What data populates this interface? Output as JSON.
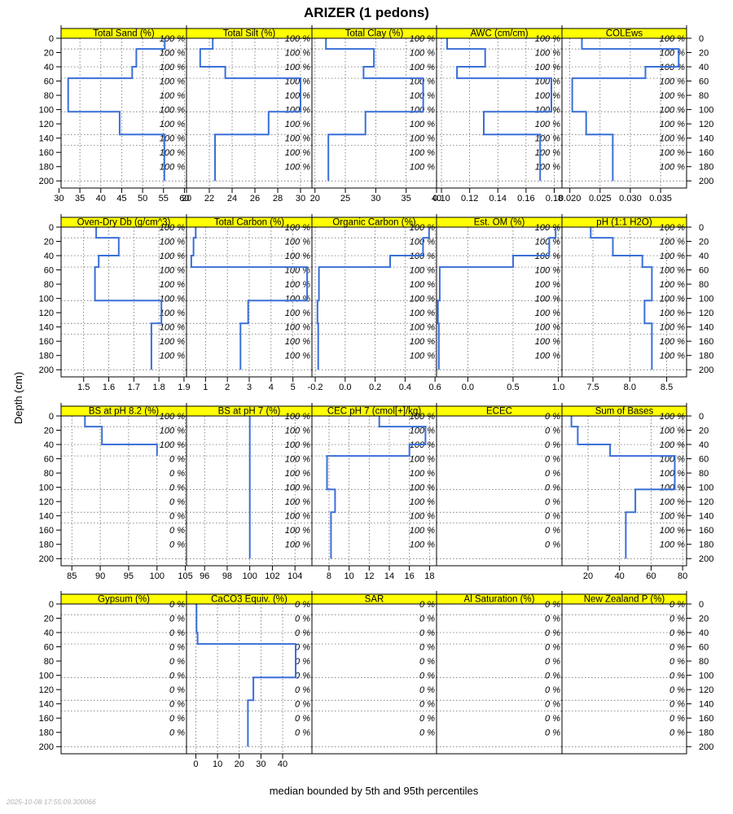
{
  "chart_data": {
    "type": "line",
    "title": "ARIZER (1 pedons)",
    "ylabel": "Depth (cm)",
    "xlabel": "median bounded by 5th and 95th percentiles",
    "timestamp": "2025-10-08 17:55:09.300066",
    "line_color": "#3a6fd8",
    "strip_color": "#ffff00",
    "depth_range": [
      0,
      210
    ],
    "depth_ticks": [
      0,
      20,
      40,
      60,
      80,
      100,
      120,
      140,
      160,
      180,
      200
    ],
    "horizon_breaks": [
      0,
      15,
      40,
      56,
      103,
      135,
      150,
      200
    ],
    "percent_depths": [
      0,
      20,
      40,
      60,
      80,
      100,
      120,
      140,
      160,
      180
    ],
    "panels": [
      {
        "name": "Total Sand (%)",
        "xlim": [
          30.5,
          60.5
        ],
        "ticks": [
          30,
          35,
          40,
          45,
          50,
          55,
          60
        ],
        "tick_labels": [
          "30",
          "35",
          "40",
          "45",
          "50",
          "55",
          "60"
        ],
        "values": [
          55.3,
          48.5,
          47.5,
          32.2,
          44.5,
          55.2,
          55.2
        ],
        "percent_labels": [
          "100 %",
          "100 %",
          "100 %",
          "100 %",
          "100 %",
          "100 %",
          "100 %",
          "100 %",
          "100 %",
          "100 %"
        ]
      },
      {
        "name": "Total Silt (%)",
        "xlim": [
          20,
          31
        ],
        "ticks": [
          20,
          22,
          24,
          26,
          28,
          30
        ],
        "tick_labels": [
          "20",
          "22",
          "24",
          "26",
          "28",
          "30"
        ],
        "values": [
          22.3,
          21.2,
          23.4,
          30.0,
          27.2,
          22.5,
          22.5
        ],
        "percent_labels": [
          "100 %",
          "100 %",
          "100 %",
          "100 %",
          "100 %",
          "100 %",
          "100 %",
          "100 %",
          "100 %",
          "100 %"
        ]
      },
      {
        "name": "Total Clay (%)",
        "xlim": [
          19.5,
          40
        ],
        "ticks": [
          20,
          25,
          30,
          35,
          40
        ],
        "tick_labels": [
          "20",
          "25",
          "30",
          "35",
          "40"
        ],
        "values": [
          21.8,
          29.7,
          28.0,
          37.8,
          28.3,
          22.2,
          22.2
        ],
        "percent_labels": [
          "100 %",
          "100 %",
          "100 %",
          "100 %",
          "100 %",
          "100 %",
          "100 %",
          "100 %",
          "100 %",
          "100 %"
        ]
      },
      {
        "name": "AWC (cm/cm)",
        "xlim": [
          0.0965,
          0.1855
        ],
        "ticks": [
          0.1,
          0.12,
          0.14,
          0.16,
          0.18
        ],
        "tick_labels": [
          "0.10",
          "0.12",
          "0.14",
          "0.16",
          "0.18"
        ],
        "values": [
          0.104,
          0.131,
          0.111,
          0.178,
          0.13,
          0.17,
          0.17
        ],
        "percent_labels": [
          "100 %",
          "100 %",
          "100 %",
          "100 %",
          "100 %",
          "100 %",
          "100 %",
          "100 %",
          "100 %",
          "100 %"
        ]
      },
      {
        "name": "COLEws",
        "xlim": [
          0.0187,
          0.0393
        ],
        "ticks": [
          0.02,
          0.025,
          0.03,
          0.035
        ],
        "tick_labels": [
          "0.020",
          "0.025",
          "0.030",
          "0.035"
        ],
        "values": [
          0.022,
          0.038,
          0.0325,
          0.0204,
          0.0227,
          0.0271,
          0.0271
        ],
        "percent_labels": [
          "100 %",
          "100 %",
          "100 %",
          "100 %",
          "100 %",
          "100 %",
          "100 %",
          "100 %",
          "100 %",
          "100 %"
        ]
      },
      {
        "name": "Oven-Dry Db (g/cm^3)",
        "xlim": [
          1.41,
          1.91
        ],
        "ticks": [
          1.5,
          1.6,
          1.7,
          1.8,
          1.9
        ],
        "tick_labels": [
          "1.5",
          "1.6",
          "1.7",
          "1.8",
          "1.9"
        ],
        "values": [
          1.55,
          1.64,
          1.56,
          1.545,
          1.81,
          1.77,
          1.77
        ],
        "percent_labels": [
          "100 %",
          "100 %",
          "100 %",
          "100 %",
          "100 %",
          "100 %",
          "100 %",
          "100 %",
          "100 %",
          "100 %"
        ]
      },
      {
        "name": "Total Carbon (%)",
        "xlim": [
          0.13,
          5.87
        ],
        "ticks": [
          1,
          2,
          3,
          4,
          5
        ],
        "tick_labels": [
          "1",
          "2",
          "3",
          "4",
          "5"
        ],
        "values": [
          0.55,
          0.45,
          0.35,
          5.65,
          2.95,
          2.6,
          2.6
        ],
        "percent_labels": [
          "100 %",
          "100 %",
          "100 %",
          "100 %",
          "100 %",
          "100 %",
          "100 %",
          "100 %",
          "100 %",
          "100 %"
        ]
      },
      {
        "name": "Organic Carbon (%)",
        "xlim": [
          -0.222,
          0.61
        ],
        "ticks": [
          -0.2,
          0.0,
          0.2,
          0.4,
          0.6
        ],
        "tick_labels": [
          "-0.2",
          "0.0",
          "0.2",
          "0.4",
          "0.6"
        ],
        "values": [
          0.56,
          0.52,
          0.3,
          -0.175,
          -0.185,
          -0.18,
          -0.18
        ],
        "percent_labels": [
          "100 %",
          "100 %",
          "100 %",
          "100 %",
          "100 %",
          "100 %",
          "100 %",
          "100 %",
          "100 %",
          "100 %"
        ]
      },
      {
        "name": "Est. OM (%)",
        "xlim": [
          -0.345,
          1.04
        ],
        "ticks": [
          0.0,
          0.5,
          1.0
        ],
        "tick_labels": [
          "0.0",
          "0.5",
          "1.0"
        ],
        "values": [
          0.97,
          0.9,
          0.5,
          -0.31,
          -0.33,
          -0.32,
          -0.32
        ],
        "percent_labels": [
          "100 %",
          "100 %",
          "100 %",
          "100 %",
          "100 %",
          "100 %",
          "100 %",
          "100 %",
          "100 %",
          "100 %"
        ]
      },
      {
        "name": "pH (1:1 H2O)",
        "xlim": [
          7.08,
          8.77
        ],
        "ticks": [
          7.5,
          8.0,
          8.5
        ],
        "tick_labels": [
          "7.5",
          "8.0",
          "8.5"
        ],
        "values": [
          7.47,
          7.77,
          8.17,
          8.3,
          8.2,
          8.3,
          8.3
        ],
        "percent_labels": [
          "100 %",
          "100 %",
          "100 %",
          "100 %",
          "100 %",
          "100 %",
          "100 %",
          "100 %",
          "100 %",
          "100 %"
        ]
      },
      {
        "name": "BS at pH 8.2 (%)",
        "xlim": [
          83.1,
          105.2
        ],
        "ticks": [
          85,
          90,
          95,
          100,
          105
        ],
        "tick_labels": [
          "85",
          "90",
          "95",
          "100",
          "105"
        ],
        "values": [
          87.3,
          90.3,
          100.0
        ],
        "depths": [
          0,
          15,
          40,
          56
        ],
        "percent_labels": [
          "100 %",
          "100 %",
          "100 %",
          "0 %",
          "0 %",
          "0 %",
          "0 %",
          "0 %",
          "0 %",
          "0 %"
        ]
      },
      {
        "name": "BS at pH 7 (%)",
        "xlim": [
          94.4,
          105.5
        ],
        "ticks": [
          96,
          98,
          100,
          102,
          104
        ],
        "tick_labels": [
          "96",
          "98",
          "100",
          "102",
          "104"
        ],
        "values": [
          100,
          100,
          100,
          100,
          100,
          100,
          100
        ],
        "percent_labels": [
          "100 %",
          "100 %",
          "100 %",
          "100 %",
          "100 %",
          "100 %",
          "100 %",
          "100 %",
          "100 %",
          "100 %"
        ]
      },
      {
        "name": "CEC pH 7 (cmol[+]/kg)",
        "xlim": [
          6.3,
          18.7
        ],
        "ticks": [
          8,
          10,
          12,
          14,
          16,
          18
        ],
        "tick_labels": [
          "8",
          "10",
          "12",
          "14",
          "16",
          "18"
        ],
        "values": [
          13.0,
          17.6,
          16.0,
          7.8,
          8.6,
          8.2,
          8.2
        ],
        "percent_labels": [
          "100 %",
          "100 %",
          "100 %",
          "100 %",
          "100 %",
          "100 %",
          "100 %",
          "100 %",
          "100 %",
          "100 %"
        ]
      },
      {
        "name": "ECEC",
        "xlim": [
          0,
          1
        ],
        "ticks": [],
        "tick_labels": [],
        "values": [],
        "percent_labels": [
          "0 %",
          "0 %",
          "0 %",
          "0 %",
          "0 %",
          "0 %",
          "0 %",
          "0 %",
          "0 %",
          "0 %"
        ]
      },
      {
        "name": "Sum of Bases",
        "xlim": [
          3.5,
          82.5
        ],
        "ticks": [
          20,
          40,
          60,
          80
        ],
        "tick_labels": [
          "20",
          "40",
          "60",
          "80"
        ],
        "values": [
          9.5,
          13.5,
          34.0,
          75.0,
          50.0,
          44.0,
          44.0
        ],
        "percent_labels": [
          "100 %",
          "100 %",
          "100 %",
          "100 %",
          "100 %",
          "100 %",
          "100 %",
          "100 %",
          "100 %",
          "100 %"
        ]
      },
      {
        "name": "Gypsum (%)",
        "xlim": [
          0,
          1
        ],
        "ticks": [],
        "tick_labels": [],
        "values": [],
        "percent_labels": [
          "0 %",
          "0 %",
          "0 %",
          "0 %",
          "0 %",
          "0 %",
          "0 %",
          "0 %",
          "0 %",
          "0 %"
        ]
      },
      {
        "name": "CaCO3 Equiv. (%)",
        "xlim": [
          -4.3,
          53.5
        ],
        "ticks": [
          0,
          10,
          20,
          30,
          40
        ],
        "tick_labels": [
          "0",
          "10",
          "20",
          "30",
          "40"
        ],
        "values": [
          0.3,
          0.3,
          0.8,
          46.0,
          26.5,
          24.0,
          24.0
        ],
        "percent_labels": [
          "0 %",
          "0 %",
          "0 %",
          "0 %",
          "0 %",
          "0 %",
          "0 %",
          "0 %",
          "0 %",
          "0 %"
        ]
      },
      {
        "name": "SAR",
        "xlim": [
          0,
          1
        ],
        "ticks": [],
        "tick_labels": [],
        "values": [],
        "percent_labels": [
          "0 %",
          "0 %",
          "0 %",
          "0 %",
          "0 %",
          "0 %",
          "0 %",
          "0 %",
          "0 %",
          "0 %"
        ]
      },
      {
        "name": "Al Saturation (%)",
        "xlim": [
          0,
          1
        ],
        "ticks": [],
        "tick_labels": [],
        "values": [],
        "percent_labels": [
          "0 %",
          "0 %",
          "0 %",
          "0 %",
          "0 %",
          "0 %",
          "0 %",
          "0 %",
          "0 %",
          "0 %"
        ]
      },
      {
        "name": "New Zealand P (%)",
        "xlim": [
          0,
          1
        ],
        "ticks": [],
        "tick_labels": [],
        "values": [],
        "percent_labels": [
          "0 %",
          "0 %",
          "0 %",
          "0 %",
          "0 %",
          "0 %",
          "0 %",
          "0 %",
          "0 %",
          "0 %"
        ]
      }
    ]
  }
}
